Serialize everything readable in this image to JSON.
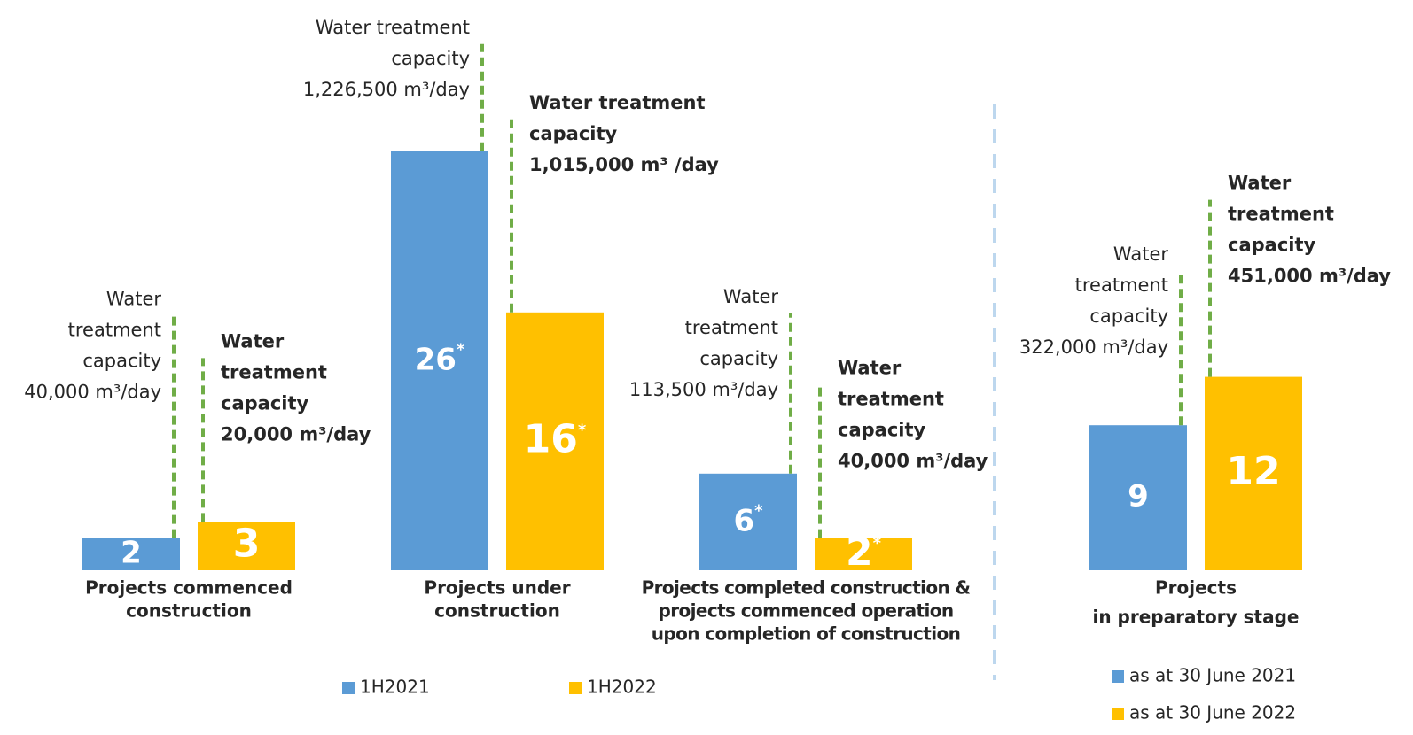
{
  "chart_data": [
    {
      "type": "bar",
      "categories": [
        [
          "Projects commenced",
          "construction"
        ],
        [
          "Projects under",
          "construction"
        ],
        [
          "Projects completed construction &",
          "projects commenced operation",
          "upon completion of construction"
        ]
      ],
      "ylim": [
        0,
        30
      ],
      "series": [
        {
          "name": "1H2021",
          "color": "#5b9bd5",
          "values": [
            2,
            26,
            6
          ],
          "value_labels": [
            "2",
            "26*",
            "6*"
          ],
          "annotations": [
            [
              "Water",
              "treatment",
              "capacity",
              "40,000 m³/day"
            ],
            [
              "Water treatment",
              "capacity",
              "1,226,500 m³/day"
            ],
            [
              "Water",
              "treatment",
              "capacity",
              "113,500 m³/day"
            ]
          ]
        },
        {
          "name": "1H2022",
          "color": "#ffc000",
          "values": [
            3,
            16,
            2
          ],
          "value_labels": [
            "3",
            "16*",
            "2*"
          ],
          "annotations": [
            [
              "Water",
              "treatment",
              "capacity",
              "20,000 m³/day"
            ],
            [
              "Water treatment",
              "capacity",
              "1,015,000 m³ /day"
            ],
            [
              "Water",
              "treatment",
              "capacity",
              "40,000 m³/day"
            ]
          ]
        }
      ]
    },
    {
      "type": "bar",
      "categories": [
        [
          "Projects",
          "in preparatory stage"
        ]
      ],
      "ylim": [
        0,
        30
      ],
      "series": [
        {
          "name": "as at 30 June 2021",
          "color": "#5b9bd5",
          "values": [
            9
          ],
          "value_labels": [
            "9"
          ],
          "annotations": [
            [
              "Water",
              "treatment",
              "capacity",
              "322,000 m³/day"
            ]
          ]
        },
        {
          "name": "as at 30 June 2022",
          "color": "#ffc000",
          "values": [
            12
          ],
          "value_labels": [
            "12"
          ],
          "annotations": [
            [
              "Water",
              "treatment",
              "capacity",
              "451,000 m³/day"
            ]
          ]
        }
      ]
    }
  ]
}
